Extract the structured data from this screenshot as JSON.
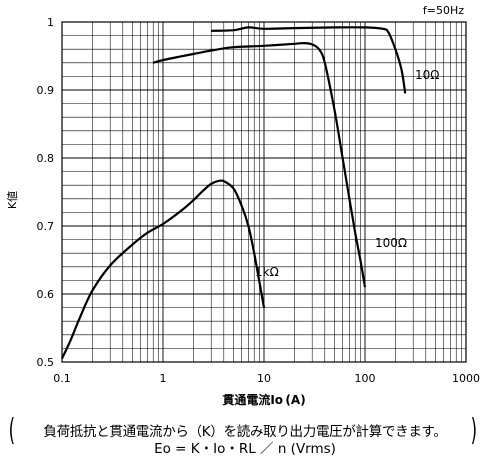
{
  "chart_data": {
    "type": "line",
    "annotation_freq": "f=50Hz",
    "xlabel": "貫通電流Io (A)",
    "ylabel": "K値",
    "xscale": "log",
    "xlim": [
      0.1,
      1000
    ],
    "ylim": [
      0.5,
      1.0
    ],
    "x_ticks": [
      "0.1",
      "1",
      "10",
      "100",
      "1000"
    ],
    "y_ticks": [
      "0.5",
      "0.6",
      "0.7",
      "0.8",
      "0.9",
      "1"
    ],
    "grid": true,
    "series": [
      {
        "name": "1kΩ",
        "color": "#000000",
        "points": [
          [
            0.1,
            0.505
          ],
          [
            0.12,
            0.53
          ],
          [
            0.15,
            0.565
          ],
          [
            0.2,
            0.605
          ],
          [
            0.3,
            0.642
          ],
          [
            0.5,
            0.673
          ],
          [
            0.7,
            0.69
          ],
          [
            1.0,
            0.703
          ],
          [
            1.5,
            0.722
          ],
          [
            2.0,
            0.738
          ],
          [
            2.5,
            0.752
          ],
          [
            3.0,
            0.762
          ],
          [
            3.5,
            0.766
          ],
          [
            4.0,
            0.766
          ],
          [
            5.0,
            0.755
          ],
          [
            6.0,
            0.73
          ],
          [
            7.0,
            0.7
          ],
          [
            8.0,
            0.66
          ],
          [
            9.0,
            0.618
          ],
          [
            10.0,
            0.58
          ]
        ]
      },
      {
        "name": "100Ω",
        "color": "#000000",
        "points": [
          [
            0.8,
            0.94
          ],
          [
            1.0,
            0.944
          ],
          [
            2.0,
            0.953
          ],
          [
            3.0,
            0.958
          ],
          [
            5.0,
            0.963
          ],
          [
            10.0,
            0.965
          ],
          [
            20.0,
            0.968
          ],
          [
            25.0,
            0.969
          ],
          [
            30.0,
            0.967
          ],
          [
            35.0,
            0.96
          ],
          [
            40.0,
            0.94
          ],
          [
            50.0,
            0.87
          ],
          [
            60.0,
            0.8
          ],
          [
            70.0,
            0.74
          ],
          [
            80.0,
            0.69
          ],
          [
            90.0,
            0.65
          ],
          [
            100.0,
            0.61
          ]
        ]
      },
      {
        "name": "10Ω",
        "color": "#000000",
        "points": [
          [
            3.0,
            0.987
          ],
          [
            5.0,
            0.988
          ],
          [
            7.0,
            0.992
          ],
          [
            10.0,
            0.99
          ],
          [
            20.0,
            0.991
          ],
          [
            50.0,
            0.992
          ],
          [
            100.0,
            0.992
          ],
          [
            150.0,
            0.99
          ],
          [
            170.0,
            0.985
          ],
          [
            200.0,
            0.96
          ],
          [
            230.0,
            0.93
          ],
          [
            250.0,
            0.895
          ]
        ]
      }
    ],
    "series_labels": [
      {
        "text": "1kΩ"
      },
      {
        "text": "100Ω"
      },
      {
        "text": "10Ω"
      }
    ]
  },
  "caption": {
    "open_paren": "(",
    "line1": "負荷抵抗と貫通電流から（K）を読み取り出力電圧が計算できます。",
    "line2": "Eo = K・Io・RL ／ n (Vrms)",
    "close_paren": ")"
  }
}
